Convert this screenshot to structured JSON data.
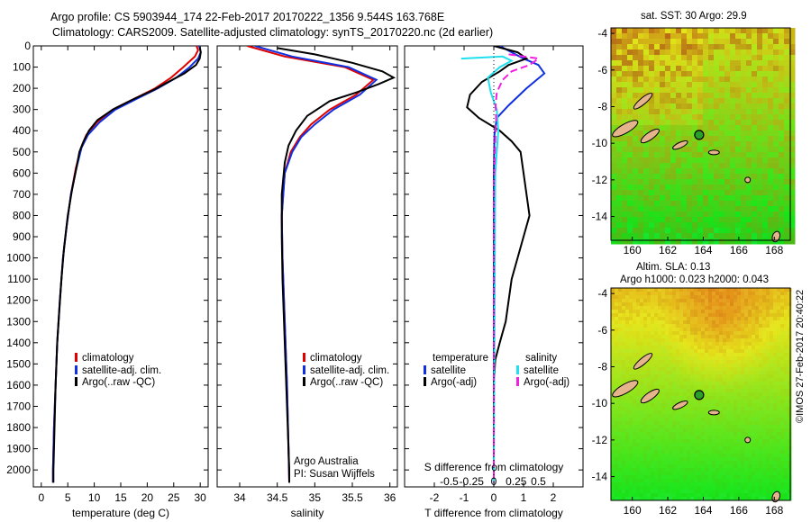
{
  "title_line1": "Argo profile: CS 5903944_174 22-Feb-2017 20170222_1356 9.544S 163.768E",
  "title_line2": "Climatology: CARS2009. Satellite-adjusted climatology: synTS_20170220.nc (2d earlier)",
  "colors": {
    "red": "#e00000",
    "blue": "#1030e0",
    "black": "#000000",
    "cyan": "#20e0f0",
    "magenta": "#f020e0"
  },
  "chart_data": [
    {
      "type": "line",
      "name": "temperature",
      "xlabel": "temperature (deg C)",
      "ylabel": "",
      "xlim": [
        -1.5,
        31.5
      ],
      "ylim": [
        2080,
        0
      ],
      "xticks": [
        0,
        5,
        10,
        15,
        20,
        25,
        30
      ],
      "xticklabels": [
        "0",
        "5",
        "10",
        "15",
        "20",
        "25",
        "30"
      ],
      "yticks": [
        0,
        100,
        200,
        300,
        400,
        500,
        600,
        700,
        800,
        900,
        1000,
        1100,
        1200,
        1300,
        1400,
        1500,
        1600,
        1700,
        1800,
        1900,
        2000
      ],
      "yticklabels": [
        "0",
        "100",
        "200",
        "300",
        "400",
        "500",
        "600",
        "700",
        "800",
        "900",
        "1000",
        "1100",
        "1200",
        "1300",
        "1400",
        "1500",
        "1600",
        "1700",
        "1800",
        "1900",
        "2000"
      ],
      "legend": [
        "climatology",
        "satellite-adj. clim.",
        "Argo(..raw -QC)"
      ],
      "series": [
        {
          "name": "climatology",
          "color": "red",
          "points": [
            [
              29.3,
              0
            ],
            [
              29.6,
              20
            ],
            [
              29.0,
              50
            ],
            [
              26.8,
              100
            ],
            [
              24.5,
              150
            ],
            [
              21.5,
              200
            ],
            [
              17.5,
              250
            ],
            [
              13.5,
              300
            ],
            [
              10.5,
              360
            ],
            [
              8.5,
              420
            ],
            [
              7.5,
              480
            ],
            [
              6.5,
              580
            ],
            [
              5.6,
              700
            ],
            [
              4.8,
              850
            ],
            [
              4.1,
              1000
            ],
            [
              3.5,
              1200
            ],
            [
              3.0,
              1400
            ],
            [
              2.7,
              1600
            ],
            [
              2.4,
              1800
            ],
            [
              2.2,
              2000
            ],
            [
              2.2,
              2060
            ]
          ]
        },
        {
          "name": "satellite-adj. clim.",
          "color": "blue",
          "points": [
            [
              29.8,
              0
            ],
            [
              30.1,
              30
            ],
            [
              29.6,
              60
            ],
            [
              28.0,
              100
            ],
            [
              25.5,
              150
            ],
            [
              22.0,
              200
            ],
            [
              18.0,
              250
            ],
            [
              14.0,
              300
            ],
            [
              11.0,
              360
            ],
            [
              8.8,
              420
            ],
            [
              7.6,
              480
            ],
            [
              6.6,
              580
            ],
            [
              5.6,
              700
            ],
            [
              4.8,
              850
            ],
            [
              4.1,
              1000
            ],
            [
              3.5,
              1200
            ],
            [
              3.0,
              1400
            ],
            [
              2.7,
              1600
            ],
            [
              2.4,
              1800
            ],
            [
              2.2,
              2000
            ],
            [
              2.2,
              2060
            ]
          ]
        },
        {
          "name": "Argo(..raw -QC)",
          "color": "black",
          "points": [
            [
              29.9,
              5
            ],
            [
              30.1,
              30
            ],
            [
              29.9,
              60
            ],
            [
              29.2,
              90
            ],
            [
              27.0,
              130
            ],
            [
              24.0,
              170
            ],
            [
              21.0,
              210
            ],
            [
              17.5,
              250
            ],
            [
              13.5,
              300
            ],
            [
              10.6,
              350
            ],
            [
              9.0,
              400
            ],
            [
              8.0,
              450
            ],
            [
              7.2,
              500
            ],
            [
              6.6,
              580
            ],
            [
              5.8,
              680
            ],
            [
              5.0,
              800
            ],
            [
              4.3,
              950
            ],
            [
              3.8,
              1100
            ],
            [
              3.4,
              1250
            ],
            [
              3.0,
              1400
            ],
            [
              2.7,
              1600
            ],
            [
              2.5,
              1800
            ],
            [
              2.3,
              2000
            ],
            [
              2.3,
              2060
            ]
          ]
        }
      ]
    },
    {
      "type": "line",
      "name": "salinity",
      "xlabel": "salinity",
      "xlim": [
        33.7,
        36.1
      ],
      "xticks": [
        34,
        34.5,
        35,
        35.5,
        36
      ],
      "xticklabels": [
        "34",
        "34.5",
        "35",
        "35.5",
        "36"
      ],
      "legend": [
        "climatology",
        "satellite-adj. clim.",
        "Argo(..raw -QC)"
      ],
      "annotation": [
        "Argo Australia",
        "PI: Susan Wijffels"
      ],
      "series": [
        {
          "name": "climatology",
          "color": "red",
          "points": [
            [
              34.1,
              0
            ],
            [
              34.6,
              50
            ],
            [
              35.4,
              100
            ],
            [
              35.78,
              160
            ],
            [
              35.55,
              230
            ],
            [
              35.2,
              300
            ],
            [
              34.95,
              370
            ],
            [
              34.8,
              430
            ],
            [
              34.68,
              500
            ],
            [
              34.6,
              600
            ],
            [
              34.56,
              800
            ],
            [
              34.57,
              1000
            ],
            [
              34.6,
              1300
            ],
            [
              34.63,
              1600
            ],
            [
              34.65,
              1900
            ],
            [
              34.66,
              2060
            ]
          ]
        },
        {
          "name": "satellite-adj. clim.",
          "color": "blue",
          "points": [
            [
              34.2,
              0
            ],
            [
              34.7,
              50
            ],
            [
              35.45,
              100
            ],
            [
              35.82,
              160
            ],
            [
              35.6,
              230
            ],
            [
              35.25,
              300
            ],
            [
              35.0,
              370
            ],
            [
              34.82,
              430
            ],
            [
              34.7,
              500
            ],
            [
              34.6,
              600
            ],
            [
              34.56,
              800
            ],
            [
              34.57,
              1000
            ],
            [
              34.6,
              1300
            ],
            [
              34.63,
              1600
            ],
            [
              34.65,
              1900
            ],
            [
              34.66,
              2060
            ]
          ]
        },
        {
          "name": "Argo(..raw -QC)",
          "color": "black",
          "points": [
            [
              34.5,
              10
            ],
            [
              35.0,
              40
            ],
            [
              35.5,
              80
            ],
            [
              35.9,
              120
            ],
            [
              36.05,
              150
            ],
            [
              35.85,
              180
            ],
            [
              35.55,
              220
            ],
            [
              35.2,
              260
            ],
            [
              34.9,
              330
            ],
            [
              34.75,
              400
            ],
            [
              34.65,
              470
            ],
            [
              34.6,
              550
            ],
            [
              34.56,
              700
            ],
            [
              34.56,
              900
            ],
            [
              34.57,
              1100
            ],
            [
              34.6,
              1400
            ],
            [
              34.63,
              1700
            ],
            [
              34.66,
              2000
            ],
            [
              34.66,
              2060
            ]
          ]
        }
      ]
    },
    {
      "type": "line",
      "name": "differences",
      "xlabel_bottom": "T difference from climatology",
      "xlabel_top": "S difference from climatology",
      "xlim": [
        -3,
        3
      ],
      "xticks": [
        -2,
        -1,
        0,
        1,
        2
      ],
      "xticklabels": [
        "-2",
        "-1",
        "0",
        "1",
        "2"
      ],
      "s_ticklabels": [
        "-0.5",
        "-0.25",
        "0",
        "0.25",
        "0.5"
      ],
      "legend_temperature": {
        "header": "temperature",
        "items": [
          "satellite",
          "Argo(-adj)"
        ]
      },
      "legend_salinity": {
        "header": "salinity",
        "items": [
          "satellite",
          "Argo(-adj)"
        ]
      },
      "series": [
        {
          "name": "temperature satellite",
          "color": "blue",
          "points": [
            [
              0.2,
              0
            ],
            [
              0.6,
              30
            ],
            [
              1.0,
              60
            ],
            [
              1.5,
              90
            ],
            [
              1.7,
              130
            ],
            [
              1.1,
              200
            ],
            [
              0.5,
              280
            ],
            [
              0.1,
              340
            ],
            [
              0.02,
              420
            ],
            [
              0,
              600
            ],
            [
              0,
              2060
            ]
          ]
        },
        {
          "name": "temperature Argo(-adj)",
          "color": "black",
          "points": [
            [
              0,
              0
            ],
            [
              0.8,
              30
            ],
            [
              1.1,
              60
            ],
            [
              0.5,
              90
            ],
            [
              0.2,
              120
            ],
            [
              -0.4,
              170
            ],
            [
              -0.8,
              230
            ],
            [
              -0.9,
              290
            ],
            [
              -0.5,
              340
            ],
            [
              0.2,
              400
            ],
            [
              0.6,
              450
            ],
            [
              0.9,
              500
            ],
            [
              1.0,
              600
            ],
            [
              1.1,
              700
            ],
            [
              1.2,
              800
            ],
            [
              1.0,
              900
            ],
            [
              0.8,
              1000
            ],
            [
              0.6,
              1100
            ],
            [
              0.5,
              1200
            ],
            [
              0.4,
              1300
            ],
            [
              0.2,
              1400
            ],
            [
              0.05,
              1480
            ],
            [
              0,
              1600
            ],
            [
              0,
              2060
            ]
          ]
        },
        {
          "name": "salinity satellite",
          "color": "cyan",
          "points": [
            [
              -1.1,
              60
            ],
            [
              0.3,
              50
            ],
            [
              0.6,
              70
            ],
            [
              0.2,
              100
            ],
            [
              -0.2,
              150
            ],
            [
              -0.1,
              220
            ],
            [
              0.1,
              300
            ],
            [
              0.15,
              400
            ],
            [
              0.05,
              600
            ],
            [
              0,
              2060
            ]
          ]
        },
        {
          "name": "salinity Argo(-adj)",
          "color": "magenta",
          "points": [
            [
              0.5,
              40
            ],
            [
              1.5,
              60
            ],
            [
              1.2,
              90
            ],
            [
              0.6,
              120
            ],
            [
              0.3,
              160
            ],
            [
              0.1,
              220
            ],
            [
              0.06,
              280
            ],
            [
              0.08,
              350
            ],
            [
              0.05,
              450
            ],
            [
              0,
              650
            ],
            [
              0,
              2060
            ]
          ]
        }
      ]
    },
    {
      "type": "heatmap",
      "name": "sst-map",
      "title": "sat. SST: 30 Argo: 29.9",
      "xticks": [
        160,
        162,
        164,
        166,
        168
      ],
      "xticklabels": [
        "160",
        "162",
        "164",
        "166",
        "168"
      ],
      "yticks": [
        -4,
        -6,
        -8,
        -10,
        -12,
        -14
      ],
      "yticklabels": [
        "-4",
        "-6",
        "-8",
        "-10",
        "-12",
        "-14"
      ],
      "xlim": [
        158.8,
        168.9
      ],
      "ylim": [
        -15.3,
        -3.7
      ],
      "marker": [
        163.768,
        -9.544
      ]
    },
    {
      "type": "heatmap",
      "name": "sla-map",
      "title_line1": "Altim. SLA: 0.13",
      "title_line2": "Argo h1000: 0.023 h2000: 0.043",
      "xticks": [
        160,
        162,
        164,
        166,
        168
      ],
      "xticklabels": [
        "160",
        "162",
        "164",
        "166",
        "168"
      ],
      "yticks": [
        -4,
        -6,
        -8,
        -10,
        -12,
        -14
      ],
      "yticklabels": [
        "-4",
        "-6",
        "-8",
        "-10",
        "-12",
        "-14"
      ],
      "xlim": [
        158.8,
        168.9
      ],
      "ylim": [
        -15.3,
        -3.7
      ],
      "marker": [
        163.768,
        -9.544
      ]
    }
  ],
  "credit": "©IMOS 27-Feb-2017 20:40:22"
}
